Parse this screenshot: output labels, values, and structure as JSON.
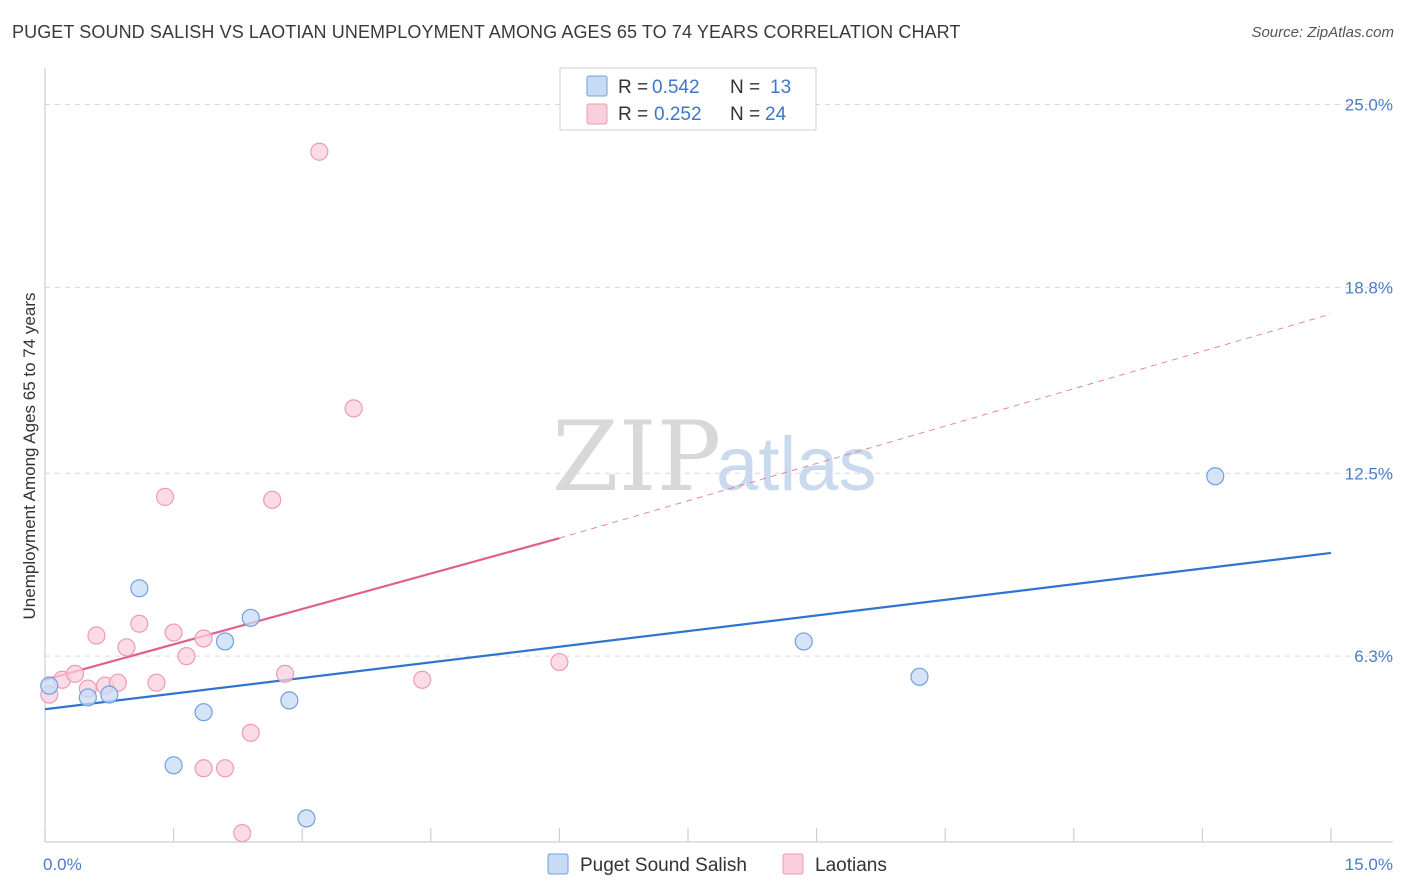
{
  "header": {
    "title": "PUGET SOUND SALISH VS LAOTIAN UNEMPLOYMENT AMONG AGES 65 TO 74 YEARS CORRELATION CHART",
    "source": "Source: ZipAtlas.com"
  },
  "watermark": {
    "zip": "ZIP",
    "atlas": "atlas"
  },
  "chart_data": {
    "type": "scatter",
    "title": "PUGET SOUND SALISH VS LAOTIAN UNEMPLOYMENT AMONG AGES 65 TO 74 YEARS CORRELATION CHART",
    "xlabel": "",
    "ylabel": "Unemployment Among Ages 65 to 74 years",
    "xlim": [
      0,
      15
    ],
    "ylim": [
      0,
      25.9
    ],
    "x_tick_labels": {
      "min": "0.0%",
      "max": "15.0%"
    },
    "y_ticks": [
      {
        "value": 6.3,
        "label": "6.3%"
      },
      {
        "value": 12.5,
        "label": "12.5%"
      },
      {
        "value": 18.8,
        "label": "18.8%"
      },
      {
        "value": 25.0,
        "label": "25.0%"
      }
    ],
    "grid": "horizontal-dashed",
    "legend_position": "top-center",
    "series": [
      {
        "name": "Puget Sound Salish",
        "color": "#6fa0e0",
        "fill": "#c8dbf5",
        "line_color": "#2f74d0",
        "R": "0.542",
        "N": "13",
        "points": [
          [
            0.05,
            5.3
          ],
          [
            0.5,
            4.9
          ],
          [
            0.75,
            5.0
          ],
          [
            1.1,
            8.6
          ],
          [
            1.5,
            2.6
          ],
          [
            1.85,
            4.4
          ],
          [
            2.1,
            6.8
          ],
          [
            2.4,
            7.6
          ],
          [
            2.85,
            4.8
          ],
          [
            3.05,
            0.8
          ],
          [
            8.85,
            6.8
          ],
          [
            10.2,
            5.6
          ],
          [
            13.65,
            12.4
          ]
        ],
        "trend": {
          "x": [
            0,
            15
          ],
          "y": [
            4.5,
            9.8
          ],
          "dashed_x": null
        }
      },
      {
        "name": "Laotians",
        "color": "#ef9bb5",
        "fill": "#f9cfdc",
        "line_color": "#e0608c",
        "R": "0.252",
        "N": "24",
        "points": [
          [
            0.05,
            5.0
          ],
          [
            0.2,
            5.5
          ],
          [
            0.35,
            5.7
          ],
          [
            0.5,
            5.2
          ],
          [
            0.6,
            7.0
          ],
          [
            0.7,
            5.3
          ],
          [
            0.85,
            5.4
          ],
          [
            0.95,
            6.6
          ],
          [
            1.1,
            7.4
          ],
          [
            1.3,
            5.4
          ],
          [
            1.4,
            11.7
          ],
          [
            1.5,
            7.1
          ],
          [
            1.65,
            6.3
          ],
          [
            1.85,
            6.9
          ],
          [
            1.85,
            2.5
          ],
          [
            2.1,
            2.5
          ],
          [
            2.3,
            0.3
          ],
          [
            2.4,
            3.7
          ],
          [
            2.65,
            11.6
          ],
          [
            2.8,
            5.7
          ],
          [
            3.2,
            23.4
          ],
          [
            3.6,
            14.7
          ],
          [
            4.4,
            5.5
          ],
          [
            6.0,
            6.1
          ]
        ],
        "trend": {
          "x": [
            0,
            6.0
          ],
          "y": [
            5.5,
            10.3
          ],
          "dashed_x": [
            6.0,
            15
          ],
          "dashed_y": [
            10.3,
            17.9
          ]
        }
      }
    ]
  }
}
